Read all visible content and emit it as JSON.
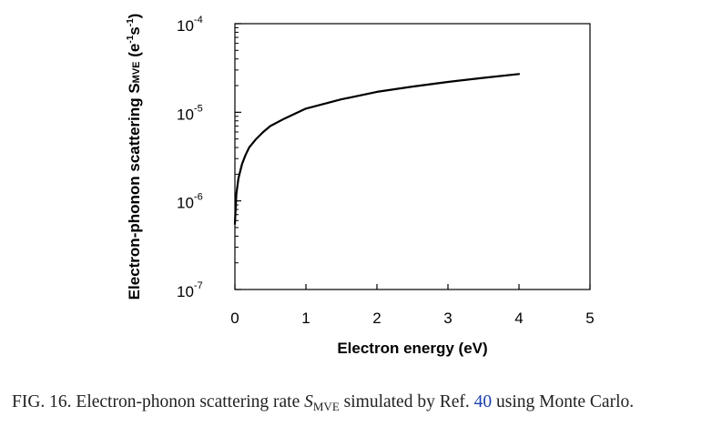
{
  "chart_data": {
    "type": "line",
    "xlabel": "Electron energy (eV)",
    "ylabel": {
      "main": "Electron-phonon scattering S",
      "subscript": "MVE",
      "units_open": " (e",
      "units_exp1": "-1",
      "units_mid": "s",
      "units_exp2": "-1",
      "units_close": ")"
    },
    "xlim": [
      0,
      5
    ],
    "ylim": [
      1e-07,
      0.0001
    ],
    "yscale": "log",
    "x_ticks": [
      {
        "value": 0,
        "label": "0"
      },
      {
        "value": 1,
        "label": "1"
      },
      {
        "value": 2,
        "label": "2"
      },
      {
        "value": 3,
        "label": "3"
      },
      {
        "value": 4,
        "label": "4"
      },
      {
        "value": 5,
        "label": "5"
      }
    ],
    "y_ticks": [
      {
        "value": 0.0001,
        "base": "10",
        "exp": "-4"
      },
      {
        "value": 1e-05,
        "base": "10",
        "exp": "-5"
      },
      {
        "value": 1e-06,
        "base": "10",
        "exp": "-6"
      },
      {
        "value": 1e-07,
        "base": "10",
        "exp": "-7"
      }
    ],
    "grid": false,
    "legend": "none",
    "series": [
      {
        "color": "#000000",
        "x": [
          0.0,
          0.02,
          0.05,
          0.1,
          0.15,
          0.2,
          0.3,
          0.4,
          0.5,
          0.7,
          1.0,
          1.5,
          2.0,
          2.5,
          3.0,
          3.5,
          4.0
        ],
        "y": [
          5.5e-07,
          1.2e-06,
          1.8e-06,
          2.6e-06,
          3.3e-06,
          4e-06,
          5e-06,
          6e-06,
          7e-06,
          8.5e-06,
          1.1e-05,
          1.4e-05,
          1.7e-05,
          1.95e-05,
          2.2e-05,
          2.45e-05,
          2.7e-05
        ]
      }
    ]
  },
  "caption": {
    "prefix": "FIG. 16. Electron-phonon scattering rate ",
    "symbol": "S",
    "symbol_sub": "MVE",
    "middle": " simulated by Ref. ",
    "ref": "40",
    "suffix": " using Monte Carlo."
  }
}
